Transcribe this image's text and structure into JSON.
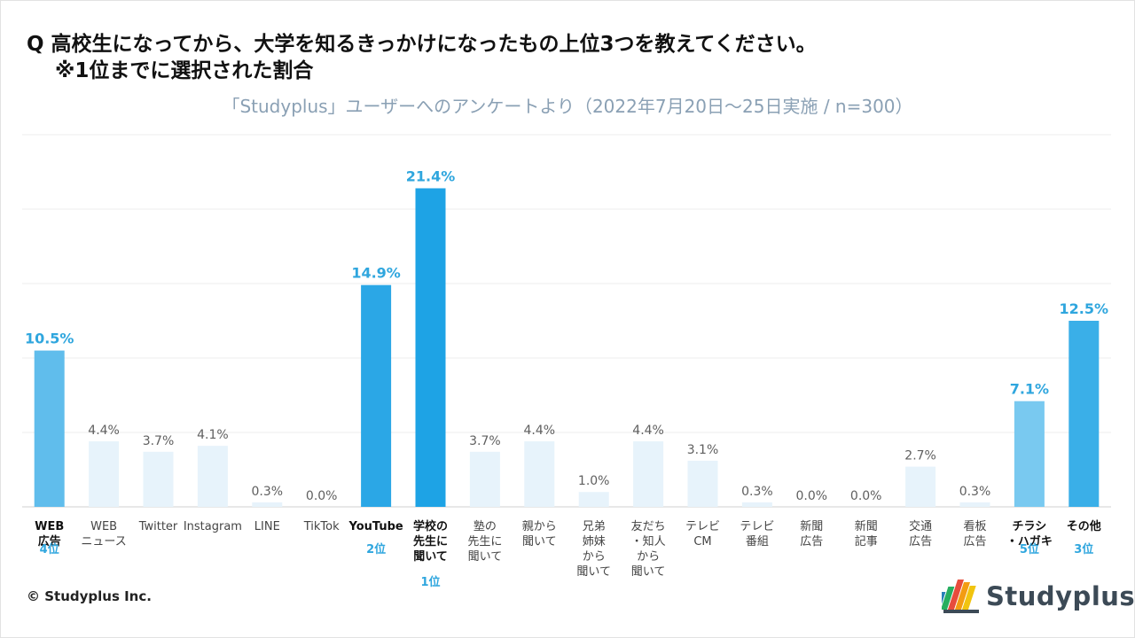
{
  "question": {
    "line1": "Q 高校生になってから、大学を知るきっかけになったもの上位3つを教えてください。",
    "line2": "※1位までに選択された割合"
  },
  "subtitle": "「Studyplus」ユーザーへのアンケートより（2022年7月20日〜25日実施 / n=300）",
  "chart_data": {
    "type": "bar",
    "title": "高校生になってから、大学を知るきっかけになったもの上位3つを教えてください。",
    "ylabel": "",
    "ylim": [
      0,
      25
    ],
    "grid": true,
    "categories": [
      "WEB広告",
      "WEBニュース",
      "Twitter",
      "Instagram",
      "LINE",
      "TikTok",
      "YouTube",
      "学校の先生に聞いて",
      "塾の先生に聞いて",
      "親から聞いて",
      "兄弟姉妹から聞いて",
      "友だち・知人から聞いて",
      "テレビCM",
      "テレビ番組",
      "新聞広告",
      "新聞記事",
      "交通広告",
      "看板広告",
      "チラシ・ハガキ",
      "その他"
    ],
    "values": [
      10.5,
      4.4,
      3.7,
      4.1,
      0.3,
      0.0,
      14.9,
      21.4,
      3.7,
      4.4,
      1.0,
      4.4,
      3.1,
      0.3,
      0.0,
      0.0,
      2.7,
      0.3,
      7.1,
      12.5
    ],
    "value_labels": [
      "10.5%",
      "4.4%",
      "3.7%",
      "4.1%",
      "0.3%",
      "0.0%",
      "14.9%",
      "21.4%",
      "3.7%",
      "4.4%",
      "1.0%",
      "4.4%",
      "3.1%",
      "0.3%",
      "0.0%",
      "0.0%",
      "2.7%",
      "0.3%",
      "7.1%",
      "12.5%"
    ],
    "tick_labels": [
      [
        "WEB",
        "広告"
      ],
      [
        "WEB",
        "ニュース"
      ],
      [
        "Twitter"
      ],
      [
        "Instagram"
      ],
      [
        "LINE"
      ],
      [
        "TikTok"
      ],
      [
        "YouTube"
      ],
      [
        "学校の",
        "先生に",
        "聞いて"
      ],
      [
        "塾の",
        "先生に",
        "聞いて"
      ],
      [
        "親から",
        "聞いて"
      ],
      [
        "兄弟",
        "姉妹",
        "から",
        "聞いて"
      ],
      [
        "友だち",
        "・知人",
        "から",
        "聞いて"
      ],
      [
        "テレビ",
        "CM"
      ],
      [
        "テレビ",
        "番組"
      ],
      [
        "新聞",
        "広告"
      ],
      [
        "新聞",
        "記事"
      ],
      [
        "交通",
        "広告"
      ],
      [
        "看板",
        "広告"
      ],
      [
        "チラシ",
        "・ハガキ"
      ],
      [
        "その他"
      ]
    ],
    "ranks": [
      "4位",
      "",
      "",
      "",
      "",
      "",
      "2位",
      "1位",
      "",
      "",
      "",
      "",
      "",
      "",
      "",
      "",
      "",
      "",
      "5位",
      "3位"
    ],
    "highlight": [
      true,
      false,
      false,
      false,
      false,
      false,
      true,
      true,
      false,
      false,
      false,
      false,
      false,
      false,
      false,
      false,
      false,
      false,
      true,
      true
    ],
    "colors": {
      "rank1": "#1ea3e5",
      "rank2": "#2ba7e6",
      "rank3": "#3aafe8",
      "rank4": "#60bdec",
      "rank5": "#79c9f0",
      "other": "#e7f3fb",
      "highlight_label": "#2fa6de",
      "normal_label": "#5f5f5f",
      "rank_text": "#2fa6de"
    },
    "bar_rank_keys": [
      "rank4",
      "other",
      "other",
      "other",
      "other",
      "other",
      "rank2",
      "rank1",
      "other",
      "other",
      "other",
      "other",
      "other",
      "other",
      "other",
      "other",
      "other",
      "other",
      "rank5",
      "rank3"
    ]
  },
  "footer": {
    "copyright": "© Studyplus Inc.",
    "logo_text": "Studyplus"
  }
}
